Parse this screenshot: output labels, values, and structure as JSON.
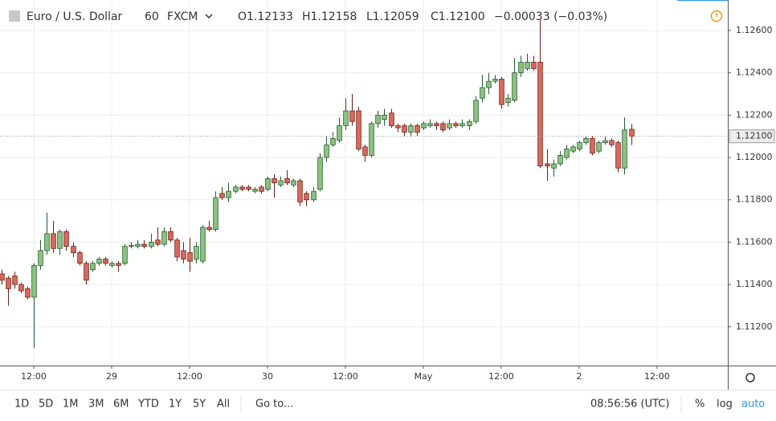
{
  "chart_data": {
    "type": "candlestick",
    "title": "Euro / U.S. Dollar",
    "interval": "60",
    "source": "FXCM",
    "legend_values": [
      "O1.12133",
      "H1.12158",
      "L1.12059",
      "C1.12100",
      "−0.00033 (−0.03%)"
    ],
    "up_color": "#8cc37e",
    "up_border": "#245a32",
    "down_color": "#d86a5c",
    "down_border": "#6b1f16",
    "grid": true,
    "xlim": [
      -0.2,
      111.9
    ],
    "xticks": [
      {
        "value": 5,
        "label": "12:00"
      },
      {
        "value": 17,
        "label": "29"
      },
      {
        "value": 29,
        "label": "12:00"
      },
      {
        "value": 41,
        "label": "30"
      },
      {
        "value": 53,
        "label": "12:00"
      },
      {
        "value": 65,
        "label": "May"
      },
      {
        "value": 77,
        "label": "12:00"
      },
      {
        "value": 89,
        "label": "2"
      },
      {
        "value": 101,
        "label": "12:00"
      }
    ],
    "ylim": [
      1.11017,
      1.12744
    ],
    "yticks": [
      {
        "value": 1.112,
        "label": "1.11200"
      },
      {
        "value": 1.114,
        "label": "1.11400"
      },
      {
        "value": 1.116,
        "label": "1.11600"
      },
      {
        "value": 1.118,
        "label": "1.11800"
      },
      {
        "value": 1.12,
        "label": "1.12000"
      },
      {
        "value": 1.122,
        "label": "1.12200"
      },
      {
        "value": 1.124,
        "label": "1.12400"
      },
      {
        "value": 1.126,
        "label": "1.12600"
      }
    ],
    "last_price": {
      "value": 1.121,
      "label": "1.12100"
    },
    "open": [
      1.1145,
      1.1143,
      1.1144,
      1.114,
      1.1138,
      1.1134,
      1.1149,
      1.1156,
      1.1164,
      1.1157,
      1.1165,
      1.1158,
      1.1155,
      1.115,
      1.1147,
      1.115,
      1.1152,
      1.1149,
      1.115,
      1.115,
      1.1158,
      1.1158,
      1.1159,
      1.1158,
      1.1161,
      1.1159,
      1.1165,
      1.1161,
      1.1156,
      1.1155,
      1.1152,
      1.1151,
      1.1167,
      1.1166,
      1.1183,
      1.1181,
      1.1184,
      1.1186,
      1.1186,
      1.1184,
      1.1186,
      1.1185,
      1.119,
      1.1187,
      1.119,
      1.1187,
      1.1189,
      1.1183,
      1.118,
      1.1185,
      1.12,
      1.1206,
      1.1208,
      1.1215,
      1.1222,
      1.1222,
      1.1205,
      1.1201,
      1.1216,
      1.1218,
      1.1221,
      1.1215,
      1.1215,
      1.1212,
      1.1215,
      1.1214,
      1.1215,
      1.1216,
      1.1216,
      1.1214,
      1.1216,
      1.1215,
      1.1215,
      1.1217,
      1.1228,
      1.1233,
      1.1236,
      1.1237,
      1.1226,
      1.1227,
      1.124,
      1.1242,
      1.1245,
      1.1245,
      1.1197,
      1.1195,
      1.1197,
      1.12,
      1.1203,
      1.1204,
      1.1207,
      1.1209,
      1.1203,
      1.1207,
      1.1208,
      1.1207,
      1.1195,
      1.12133
    ],
    "high": [
      1.1147,
      1.1144,
      1.1146,
      1.1141,
      1.1139,
      1.115,
      1.1161,
      1.1174,
      1.117,
      1.1166,
      1.1166,
      1.116,
      1.1156,
      1.1151,
      1.1151,
      1.1153,
      1.1153,
      1.1151,
      1.1151,
      1.1159,
      1.116,
      1.1161,
      1.1161,
      1.1164,
      1.1167,
      1.1167,
      1.1167,
      1.1162,
      1.116,
      1.1162,
      1.116,
      1.1168,
      1.117,
      1.1184,
      1.1186,
      1.1188,
      1.1187,
      1.1187,
      1.1187,
      1.1186,
      1.1187,
      1.1191,
      1.1192,
      1.1191,
      1.1194,
      1.119,
      1.119,
      1.1184,
      1.1186,
      1.1202,
      1.121,
      1.1212,
      1.1219,
      1.1228,
      1.123,
      1.1224,
      1.1206,
      1.1217,
      1.1222,
      1.1223,
      1.1223,
      1.1216,
      1.1216,
      1.1216,
      1.1216,
      1.1217,
      1.1218,
      1.1217,
      1.1217,
      1.1218,
      1.1217,
      1.1218,
      1.1218,
      1.1229,
      1.1239,
      1.124,
      1.1239,
      1.1238,
      1.123,
      1.1247,
      1.1248,
      1.1249,
      1.1248,
      1.1265,
      1.1204,
      1.1199,
      1.1203,
      1.1206,
      1.1206,
      1.1208,
      1.121,
      1.121,
      1.1208,
      1.121,
      1.1209,
      1.1208,
      1.1219,
      1.12158
    ],
    "low": [
      1.114,
      1.113,
      1.1138,
      1.1136,
      1.1133,
      1.111,
      1.1147,
      1.1154,
      1.1155,
      1.1154,
      1.1156,
      1.1153,
      1.1149,
      1.114,
      1.1146,
      1.1149,
      1.1149,
      1.1148,
      1.1146,
      1.1149,
      1.1157,
      1.1157,
      1.1157,
      1.1157,
      1.1158,
      1.1158,
      1.116,
      1.1151,
      1.115,
      1.1146,
      1.115,
      1.115,
      1.1165,
      1.1165,
      1.118,
      1.1179,
      1.1183,
      1.1184,
      1.1184,
      1.1183,
      1.1183,
      1.1184,
      1.1181,
      1.1186,
      1.1187,
      1.1186,
      1.1177,
      1.1177,
      1.1179,
      1.1184,
      1.1198,
      1.1205,
      1.1207,
      1.1213,
      1.1215,
      1.1203,
      1.1198,
      1.12,
      1.1214,
      1.1215,
      1.1214,
      1.1212,
      1.121,
      1.121,
      1.121,
      1.1213,
      1.1214,
      1.1213,
      1.1212,
      1.1213,
      1.1214,
      1.1214,
      1.1213,
      1.1216,
      1.1226,
      1.123,
      1.1235,
      1.1223,
      1.1224,
      1.1226,
      1.1238,
      1.1241,
      1.1241,
      1.1195,
      1.1189,
      1.1191,
      1.1196,
      1.1199,
      1.1202,
      1.1203,
      1.1206,
      1.1201,
      1.1202,
      1.1206,
      1.1205,
      1.1193,
      1.1192,
      1.12059
    ],
    "close": [
      1.1142,
      1.1138,
      1.114,
      1.1137,
      1.1134,
      1.1149,
      1.1156,
      1.1164,
      1.1157,
      1.1165,
      1.1158,
      1.1155,
      1.115,
      1.1142,
      1.115,
      1.1152,
      1.115,
      1.115,
      1.1149,
      1.1158,
      1.11585,
      1.1159,
      1.1158,
      1.116,
      1.1159,
      1.1165,
      1.1161,
      1.1153,
      1.1152,
      1.1151,
      1.1158,
      1.1167,
      1.1166,
      1.1181,
      1.1181,
      1.1184,
      1.1186,
      1.1185,
      1.1185,
      1.1185,
      1.1184,
      1.119,
      1.1188,
      1.1189,
      1.1188,
      1.1189,
      1.1179,
      1.118,
      1.1184,
      1.12,
      1.1206,
      1.1209,
      1.1215,
      1.1222,
      1.1217,
      1.1204,
      1.1201,
      1.1216,
      1.122,
      1.122,
      1.1215,
      1.1214,
      1.1212,
      1.1215,
      1.1212,
      1.1216,
      1.1216,
      1.1215,
      1.1213,
      1.1216,
      1.1215,
      1.1216,
      1.1217,
      1.1227,
      1.1233,
      1.1236,
      1.1237,
      1.1225,
      1.1228,
      1.124,
      1.1245,
      1.1245,
      1.1242,
      1.1196,
      1.1196,
      1.1197,
      1.1201,
      1.1204,
      1.1205,
      1.1207,
      1.1209,
      1.1202,
      1.1207,
      1.1208,
      1.1206,
      1.1195,
      1.1213,
      1.121
    ]
  },
  "toolbar": {
    "ranges": [
      "1D",
      "5D",
      "1M",
      "3M",
      "6M",
      "YTD",
      "1Y",
      "5Y",
      "All"
    ],
    "goto": "Go to...",
    "clock": "08:56:56 (UTC)",
    "buttons": [
      "%",
      "log",
      "auto"
    ]
  }
}
